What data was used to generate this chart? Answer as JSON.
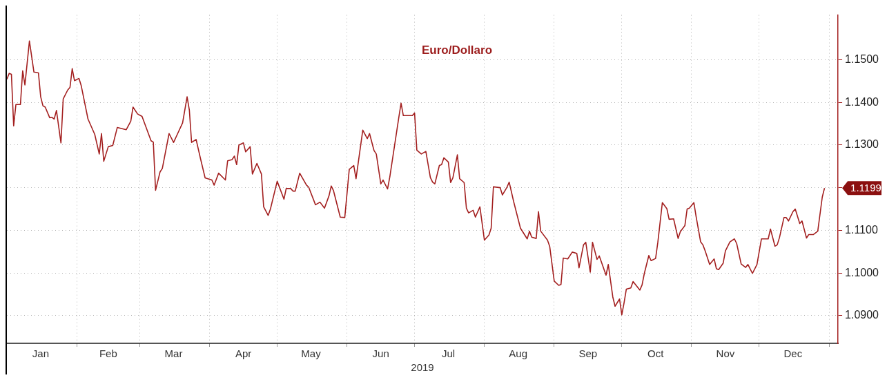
{
  "chart_data": {
    "type": "line",
    "title": "Euro/Dollaro",
    "xlabel": "2019",
    "legend": false,
    "grid": true,
    "marker": "none",
    "line_style": "solid",
    "xlim": [
      "2019-01-01",
      "2020-01-05"
    ],
    "xticks": [
      {
        "value": "2019-01-16",
        "label": "Jan"
      },
      {
        "value": "2019-02-15",
        "label": "Feb"
      },
      {
        "value": "2019-03-16",
        "label": "Mar"
      },
      {
        "value": "2019-04-16",
        "label": "Apr"
      },
      {
        "value": "2019-05-16",
        "label": "May"
      },
      {
        "value": "2019-06-16",
        "label": "Jun"
      },
      {
        "value": "2019-07-16",
        "label": "Jul"
      },
      {
        "value": "2019-08-16",
        "label": "Aug"
      },
      {
        "value": "2019-09-16",
        "label": "Sep"
      },
      {
        "value": "2019-10-16",
        "label": "Oct"
      },
      {
        "value": "2019-11-16",
        "label": "Nov"
      },
      {
        "value": "2019-12-16",
        "label": "Dec"
      },
      {
        "value": "2019-02-01",
        "label": null
      },
      {
        "value": "2019-03-01",
        "label": null
      },
      {
        "value": "2019-04-01",
        "label": null
      },
      {
        "value": "2019-05-01",
        "label": null
      },
      {
        "value": "2019-06-01",
        "label": null
      },
      {
        "value": "2019-07-01",
        "label": null
      },
      {
        "value": "2019-08-01",
        "label": null
      },
      {
        "value": "2019-09-01",
        "label": null
      },
      {
        "value": "2019-10-01",
        "label": null
      },
      {
        "value": "2019-11-01",
        "label": null
      },
      {
        "value": "2019-12-01",
        "label": null
      },
      {
        "value": "2020-01-01",
        "label": null
      }
    ],
    "ylim": [
      1.0835,
      1.1605
    ],
    "yticks": [
      {
        "value": 1.09,
        "label": "1.0900"
      },
      {
        "value": 1.1,
        "label": "1.1000"
      },
      {
        "value": 1.11,
        "label": "1.1100"
      },
      {
        "value": 1.12,
        "label": null
      },
      {
        "value": 1.13,
        "label": "1.1300"
      },
      {
        "value": 1.14,
        "label": "1.1400"
      },
      {
        "value": 1.15,
        "label": "1.1500"
      }
    ],
    "annotations": [
      {
        "text": "1.1199",
        "x": "2019-12-30",
        "y": 1.1199
      }
    ],
    "series": [
      {
        "color": "#a31f1f",
        "x": [
          "2019-01-01",
          "2019-01-02",
          "2019-01-03",
          "2019-01-04",
          "2019-01-05",
          "2019-01-07",
          "2019-01-08",
          "2019-01-09",
          "2019-01-11",
          "2019-01-13",
          "2019-01-15",
          "2019-01-16",
          "2019-01-17",
          "2019-01-18",
          "2019-01-20",
          "2019-01-21",
          "2019-01-22",
          "2019-01-23",
          "2019-01-25",
          "2019-01-26",
          "2019-01-28",
          "2019-01-29",
          "2019-01-30",
          "2019-01-31",
          "2019-02-02",
          "2019-02-03",
          "2019-02-06",
          "2019-02-09",
          "2019-02-11",
          "2019-02-12",
          "2019-02-13",
          "2019-02-15",
          "2019-02-17",
          "2019-02-19",
          "2019-02-23",
          "2019-02-25",
          "2019-02-26",
          "2019-02-28",
          "2019-03-02",
          "2019-03-06",
          "2019-03-07",
          "2019-03-08",
          "2019-03-10",
          "2019-03-11",
          "2019-03-14",
          "2019-03-16",
          "2019-03-18",
          "2019-03-20",
          "2019-03-22",
          "2019-03-23",
          "2019-03-24",
          "2019-03-26",
          "2019-03-28",
          "2019-03-30",
          "2019-04-02",
          "2019-04-03",
          "2019-04-05",
          "2019-04-08",
          "2019-04-09",
          "2019-04-11",
          "2019-04-12",
          "2019-04-13",
          "2019-04-14",
          "2019-04-16",
          "2019-04-17",
          "2019-04-19",
          "2019-04-20",
          "2019-04-22",
          "2019-04-24",
          "2019-04-25",
          "2019-04-27",
          "2019-04-28",
          "2019-05-01",
          "2019-05-04",
          "2019-05-05",
          "2019-05-07",
          "2019-05-08",
          "2019-05-09",
          "2019-05-10",
          "2019-05-11",
          "2019-05-14",
          "2019-05-15",
          "2019-05-18",
          "2019-05-20",
          "2019-05-22",
          "2019-05-24",
          "2019-05-25",
          "2019-05-26",
          "2019-05-29",
          "2019-05-31",
          "2019-06-02",
          "2019-06-04",
          "2019-06-05",
          "2019-06-08",
          "2019-06-10",
          "2019-06-11",
          "2019-06-13",
          "2019-06-14",
          "2019-06-16",
          "2019-06-17",
          "2019-06-19",
          "2019-06-20",
          "2019-06-24",
          "2019-06-25",
          "2019-06-26",
          "2019-06-30",
          "2019-07-01",
          "2019-07-02",
          "2019-07-04",
          "2019-07-06",
          "2019-07-08",
          "2019-07-09",
          "2019-07-10",
          "2019-07-12",
          "2019-07-13",
          "2019-07-14",
          "2019-07-16",
          "2019-07-17",
          "2019-07-18",
          "2019-07-20",
          "2019-07-21",
          "2019-07-23",
          "2019-07-24",
          "2019-07-25",
          "2019-07-27",
          "2019-07-28",
          "2019-07-30",
          "2019-08-01",
          "2019-08-03",
          "2019-08-04",
          "2019-08-05",
          "2019-08-08",
          "2019-08-09",
          "2019-08-11",
          "2019-08-12",
          "2019-08-14",
          "2019-08-17",
          "2019-08-20",
          "2019-08-21",
          "2019-08-22",
          "2019-08-24",
          "2019-08-25",
          "2019-08-26",
          "2019-08-29",
          "2019-08-30",
          "2019-09-01",
          "2019-09-03",
          "2019-09-04",
          "2019-09-05",
          "2019-09-07",
          "2019-09-09",
          "2019-09-11",
          "2019-09-12",
          "2019-09-14",
          "2019-09-15",
          "2019-09-17",
          "2019-09-18",
          "2019-09-20",
          "2019-09-21",
          "2019-09-24",
          "2019-09-25",
          "2019-09-27",
          "2019-09-28",
          "2019-09-30",
          "2019-10-01",
          "2019-10-02",
          "2019-10-03",
          "2019-10-05",
          "2019-10-06",
          "2019-10-09",
          "2019-10-10",
          "2019-10-11",
          "2019-10-13",
          "2019-10-14",
          "2019-10-16",
          "2019-10-17",
          "2019-10-19",
          "2019-10-21",
          "2019-10-22",
          "2019-10-24",
          "2019-10-26",
          "2019-10-27",
          "2019-10-29",
          "2019-10-30",
          "2019-10-31",
          "2019-11-02",
          "2019-11-03",
          "2019-11-05",
          "2019-11-06",
          "2019-11-07",
          "2019-11-09",
          "2019-11-11",
          "2019-11-12",
          "2019-11-13",
          "2019-11-15",
          "2019-11-16",
          "2019-11-18",
          "2019-11-20",
          "2019-11-21",
          "2019-11-23",
          "2019-11-25",
          "2019-11-26",
          "2019-11-28",
          "2019-11-30",
          "2019-12-02",
          "2019-12-05",
          "2019-12-06",
          "2019-12-08",
          "2019-12-09",
          "2019-12-10",
          "2019-12-12",
          "2019-12-13",
          "2019-12-14",
          "2019-12-16",
          "2019-12-17",
          "2019-12-19",
          "2019-12-20",
          "2019-12-22",
          "2019-12-23",
          "2019-12-25",
          "2019-12-27",
          "2019-12-29",
          "2019-12-30"
        ],
        "values": [
          1.1454,
          1.1468,
          1.1466,
          1.1345,
          1.1395,
          1.1395,
          1.1474,
          1.1441,
          1.1544,
          1.1471,
          1.1469,
          1.1413,
          1.1392,
          1.1389,
          1.1364,
          1.1365,
          1.1361,
          1.1381,
          1.1305,
          1.1408,
          1.1429,
          1.1435,
          1.1479,
          1.1451,
          1.1456,
          1.1439,
          1.1361,
          1.1325,
          1.1279,
          1.1327,
          1.1262,
          1.1296,
          1.1299,
          1.1341,
          1.1336,
          1.1356,
          1.1389,
          1.1373,
          1.1367,
          1.131,
          1.1307,
          1.1194,
          1.1237,
          1.1245,
          1.1327,
          1.1306,
          1.1329,
          1.1352,
          1.1413,
          1.1382,
          1.1306,
          1.1313,
          1.1267,
          1.1223,
          1.1218,
          1.1206,
          1.1234,
          1.1218,
          1.1263,
          1.1266,
          1.1274,
          1.1254,
          1.13,
          1.1305,
          1.1284,
          1.1296,
          1.1232,
          1.1257,
          1.1232,
          1.1155,
          1.1135,
          1.115,
          1.1215,
          1.1173,
          1.1198,
          1.1198,
          1.1192,
          1.1192,
          1.1213,
          1.1234,
          1.1206,
          1.1201,
          1.116,
          1.1166,
          1.1152,
          1.1181,
          1.1204,
          1.1193,
          1.1131,
          1.113,
          1.1243,
          1.1252,
          1.1221,
          1.1335,
          1.1315,
          1.1327,
          1.1287,
          1.1279,
          1.1209,
          1.1218,
          1.1197,
          1.1225,
          1.1365,
          1.1398,
          1.1369,
          1.1369,
          1.1375,
          1.1288,
          1.1279,
          1.1285,
          1.1224,
          1.1213,
          1.1209,
          1.1252,
          1.1254,
          1.127,
          1.126,
          1.1212,
          1.1223,
          1.1277,
          1.1221,
          1.1212,
          1.1152,
          1.1141,
          1.1147,
          1.1131,
          1.1155,
          1.1077,
          1.1089,
          1.1105,
          1.1202,
          1.12,
          1.1183,
          1.1201,
          1.1213,
          1.1167,
          1.1105,
          1.108,
          1.1098,
          1.1084,
          1.1081,
          1.1144,
          1.1098,
          1.1077,
          1.1062,
          1.0981,
          1.0971,
          1.0973,
          1.1035,
          1.1033,
          1.1049,
          1.1046,
          1.1012,
          1.1066,
          1.1072,
          1.1002,
          1.1072,
          1.1032,
          1.104,
          1.0995,
          1.102,
          1.0944,
          1.0922,
          1.0939,
          1.0902,
          1.093,
          1.0962,
          1.0965,
          1.098,
          1.096,
          1.0972,
          1.0999,
          1.1041,
          1.1029,
          1.1034,
          1.1072,
          1.1165,
          1.1151,
          1.1126,
          1.1127,
          1.1081,
          1.1097,
          1.1111,
          1.115,
          1.1152,
          1.1165,
          1.1132,
          1.1073,
          1.1066,
          1.1052,
          1.102,
          1.1033,
          1.101,
          1.1008,
          1.1023,
          1.1052,
          1.1073,
          1.108,
          1.1069,
          1.1021,
          1.1013,
          1.102,
          1.0999,
          1.102,
          1.108,
          1.108,
          1.1103,
          1.1063,
          1.1066,
          1.1083,
          1.113,
          1.113,
          1.1122,
          1.1144,
          1.115,
          1.1116,
          1.1122,
          1.1082,
          1.109,
          1.109,
          1.1098,
          1.1178,
          1.1199
        ]
      }
    ]
  }
}
